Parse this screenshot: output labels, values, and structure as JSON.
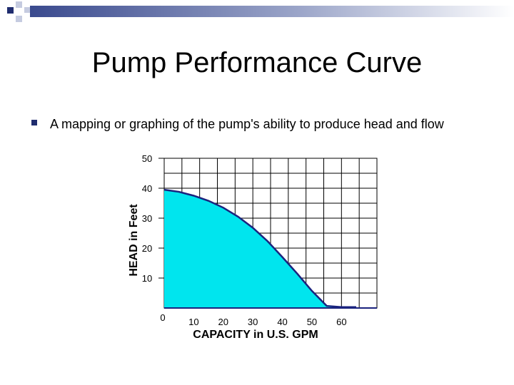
{
  "slide": {
    "title": "Pump Performance Curve",
    "bullet": "A mapping or graphing of the pump's ability to produce head and flow"
  },
  "colors": {
    "accent_navy": "#1f2c6e",
    "curve_fill": "#00e5ee",
    "curve_stroke": "#1a237e",
    "grid": "#000000"
  },
  "chart_data": {
    "type": "area",
    "xlabel": "CAPACITY in U.S. GPM",
    "ylabel": "HEAD in Feet",
    "xlim": [
      0,
      72
    ],
    "ylim": [
      0,
      50
    ],
    "x_ticks": [
      0,
      10,
      20,
      30,
      40,
      50,
      60
    ],
    "x_tick_labels": [
      "0",
      "10",
      "20",
      "30",
      "40",
      "50",
      "60"
    ],
    "y_ticks": [
      10,
      20,
      30,
      40,
      50
    ],
    "y_tick_labels": [
      "10",
      "20",
      "30",
      "40",
      "50"
    ],
    "grid": true,
    "series": [
      {
        "x": [
          0,
          5,
          10,
          15,
          20,
          25,
          30,
          35,
          40,
          45,
          50,
          55,
          60,
          63,
          65
        ],
        "values": [
          39.5,
          38.8,
          37.5,
          35.8,
          33.5,
          30.5,
          26.8,
          22.3,
          17.0,
          11.5,
          5.7,
          0.7,
          0.3,
          0.3,
          0.3
        ]
      }
    ]
  }
}
